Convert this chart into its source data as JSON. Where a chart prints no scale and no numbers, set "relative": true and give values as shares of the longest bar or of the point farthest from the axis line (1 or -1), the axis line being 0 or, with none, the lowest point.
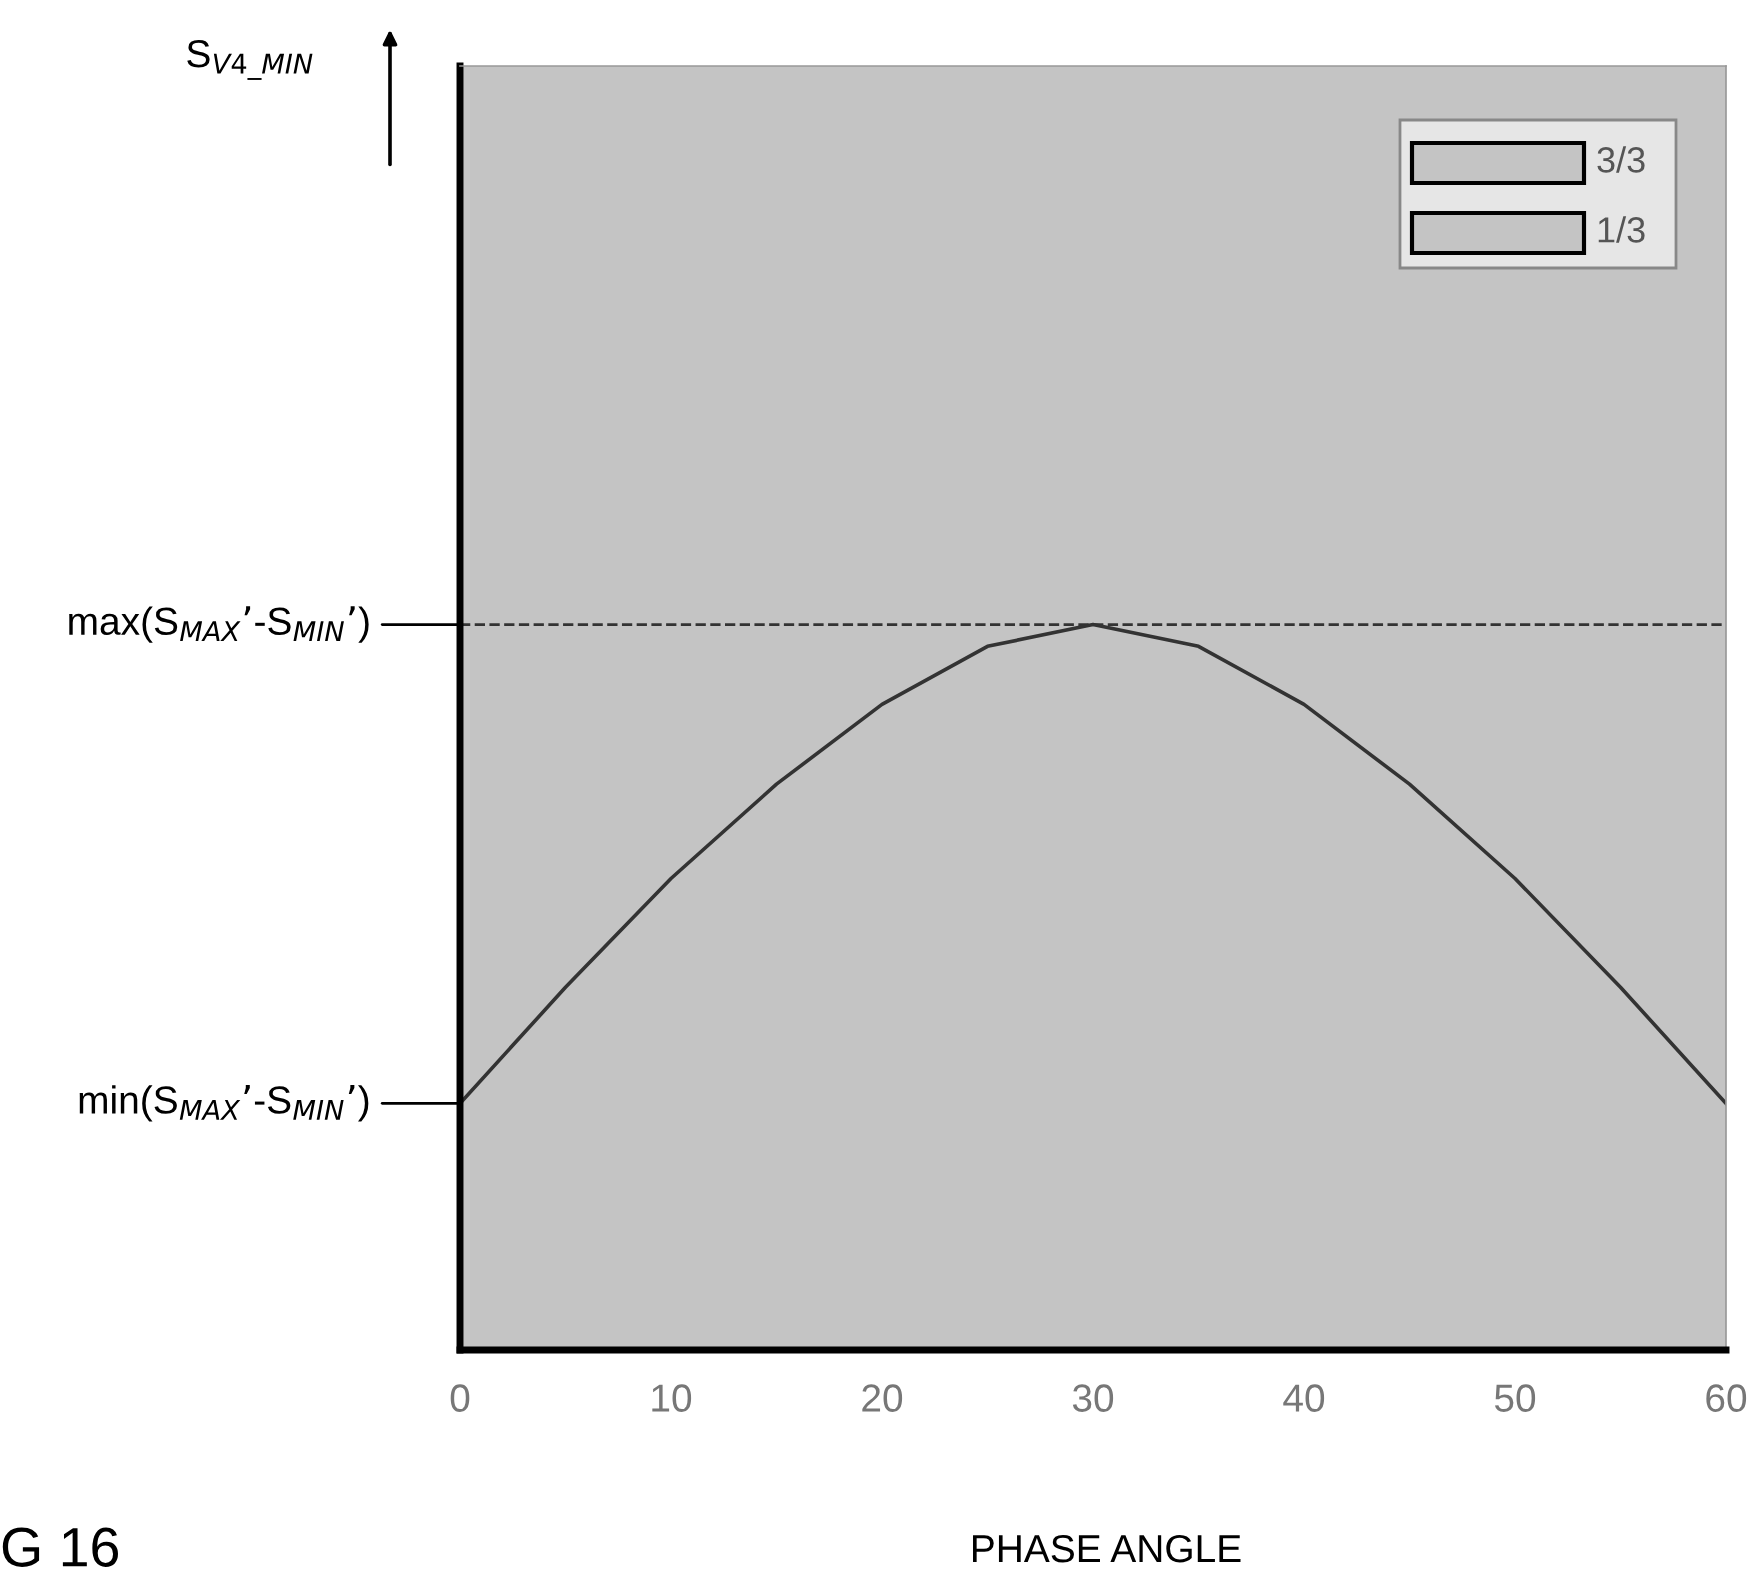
{
  "chart_data": {
    "type": "line",
    "relative": true,
    "xlabel": "PHASE ANGLE",
    "x": [
      0,
      5,
      10,
      15,
      20,
      25,
      30,
      35,
      40,
      45,
      50,
      55,
      60
    ],
    "series": [
      {
        "color": "#333333",
        "values": [
          0.34,
          0.5,
          0.65,
          0.78,
          0.89,
          0.97,
          1,
          0.97,
          0.89,
          0.78,
          0.65,
          0.5,
          0.34
        ]
      }
    ],
    "xlim": [
      0,
      60
    ],
    "xticks": [
      0,
      10,
      20,
      30,
      40,
      50,
      60
    ],
    "ref_lines": [
      {
        "axis": "y",
        "value": 1,
        "label": "max(S$_{MAX}$’-S$_{MIN}$’)",
        "line_style": "dashed",
        "color": "#333333"
      }
    ],
    "annotations": [
      {
        "text": "min(S$_{MAX}$’-S$_{MIN}$’)",
        "x": 0,
        "y": 0.34
      },
      "S$_{V4_MIN}$",
      "3/3",
      "1/3",
      "G 16"
    ],
    "grid": false,
    "marker": "none",
    "line_style": "solid"
  }
}
